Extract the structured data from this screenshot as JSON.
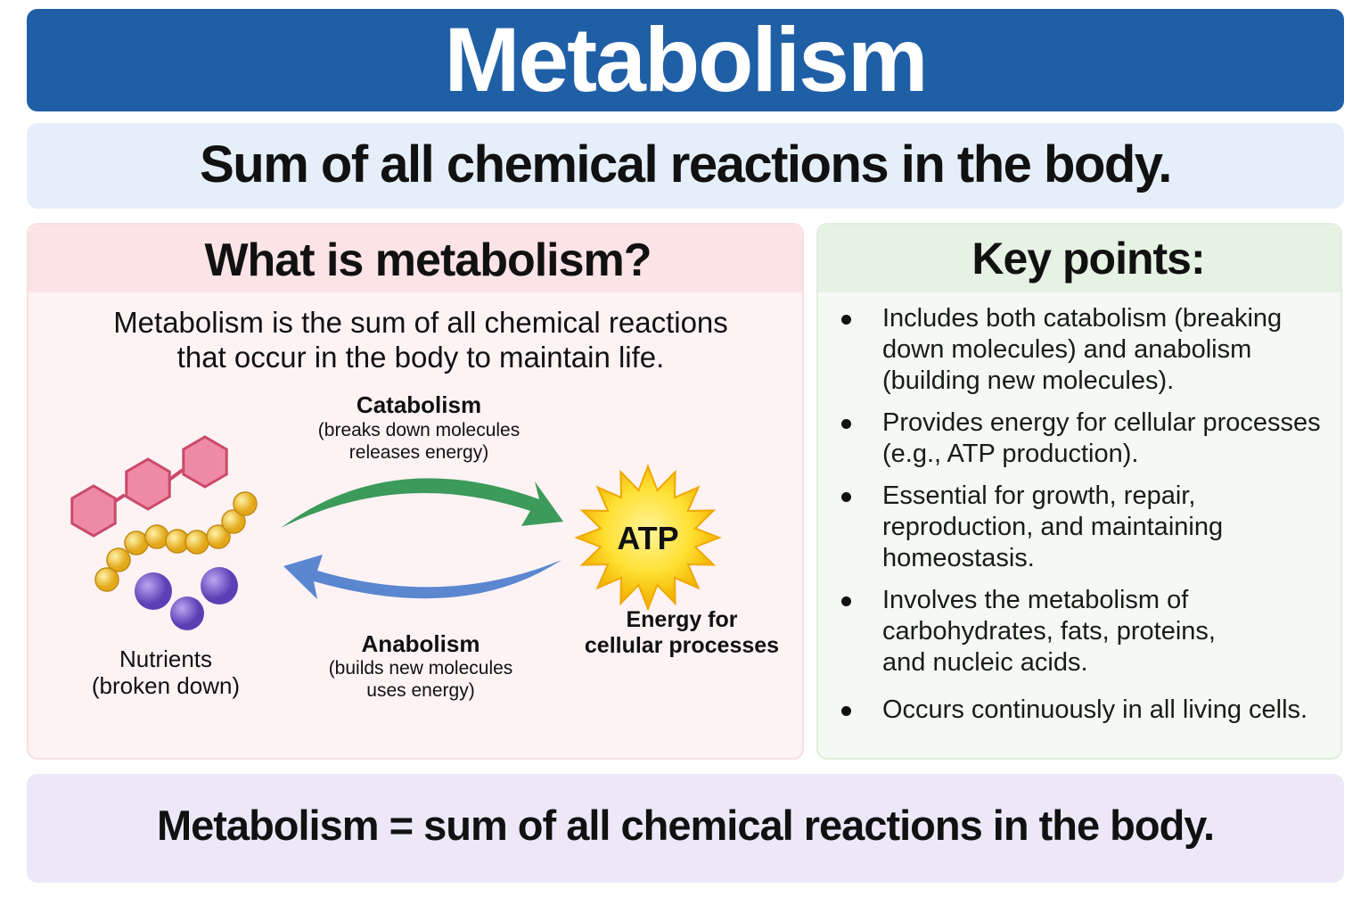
{
  "header": {
    "title": "Metabolism",
    "subtitle": "Sum of all chemical reactions in the body."
  },
  "left_panel": {
    "heading": "What is metabolism?",
    "description": [
      "Metabolism is the sum of all chemical reactions",
      "that occur in the body to maintain life."
    ]
  },
  "diagram": {
    "catabolism": {
      "title": "Catabolism",
      "detail": [
        "(breaks down molecules",
        "releases energy)"
      ]
    },
    "anabolism": {
      "title": "Anabolism",
      "detail": [
        "(builds new molecules",
        "uses energy)"
      ]
    },
    "atp": "ATP",
    "energy_label": [
      "Energy for",
      "cellular processes"
    ],
    "nutrients_label": [
      "Nutrients",
      "(broken down)"
    ]
  },
  "right_panel": {
    "heading": "Key points:",
    "bullets": [
      "Includes both catabolism (breaking down molecules) and anabolism (building new molecules).",
      "Provides energy for cellular processes (e.g., ATP production).",
      "Essential for growth, repair, reproduction, and maintaining homeostasis.",
      "Involves the metabolism of carbohydrates, fats, proteins, and nucleic acids.",
      "Occurs continuously in all living cells."
    ]
  },
  "footer": {
    "text": "Metabolism = sum of all chemical reactions in the body."
  }
}
